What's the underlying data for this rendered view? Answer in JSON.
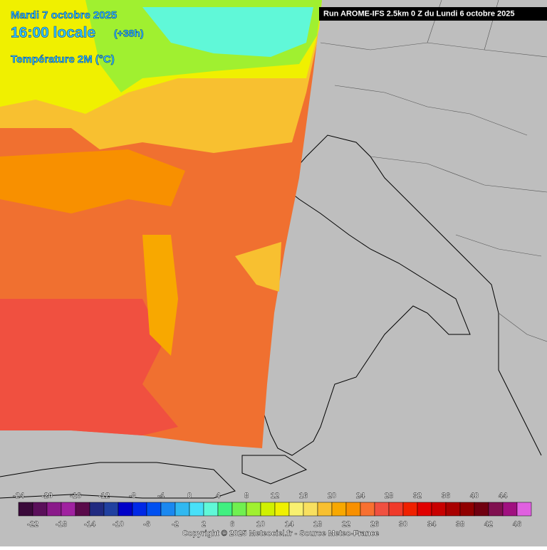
{
  "header": {
    "date": "Mardi 7 octobre 2025",
    "time": "16:00 locale",
    "lead": "(+38h)",
    "parameter": "Température 2M (°C)",
    "run": "Run AROME-IFS 2.5km 0 Z du Lundi 6 octobre 2025"
  },
  "colorbar": {
    "bounds": [
      -24,
      -22,
      -20,
      -18,
      -16,
      -14,
      -12,
      -10,
      -8,
      -6,
      -4,
      -2,
      0,
      2,
      4,
      6,
      8,
      10,
      12,
      14,
      16,
      18,
      20,
      22,
      24,
      26,
      28,
      30,
      32,
      34,
      36,
      38,
      40,
      42,
      44,
      46
    ],
    "colors": [
      "#3a0a3a",
      "#5a0f5a",
      "#8a1a8a",
      "#a021a0",
      "#5a0a4a",
      "#202a80",
      "#2040a0",
      "#0000c8",
      "#0028e6",
      "#0050f0",
      "#1a88f0",
      "#30b8f0",
      "#48e0f8",
      "#60f8d8",
      "#40f080",
      "#70f050",
      "#a0f030",
      "#d0f000",
      "#f0f000",
      "#f8f070",
      "#f8e060",
      "#f8c030",
      "#f8a800",
      "#f89000",
      "#f87030",
      "#f05040",
      "#f03a2a",
      "#f02000",
      "#e00000",
      "#c80000",
      "#a80000",
      "#900000",
      "#700010",
      "#801050",
      "#a01080",
      "#e060e0"
    ]
  },
  "footer": {
    "copyright": "Copyright © 2025 Meteociel.fr - Source Meteo-France"
  }
}
